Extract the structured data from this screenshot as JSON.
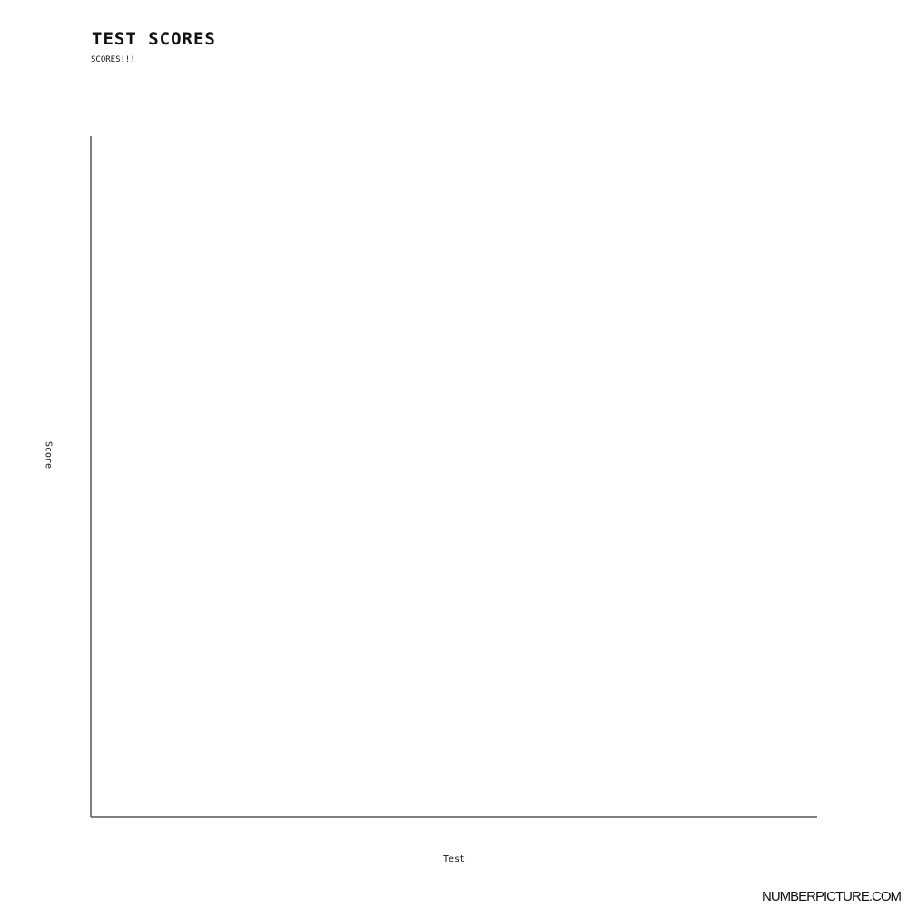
{
  "chart_data": {
    "type": "bar",
    "title": "TEST SCORES",
    "subtitle": "SCORES!!!",
    "xlabel": "Test",
    "ylabel": "Score",
    "categories": [],
    "values": [],
    "grid": false,
    "legend": "none",
    "colors": {
      "axis": "#555555",
      "text": "#111111",
      "background": "#ffffff"
    }
  },
  "watermark": "NUMBERPICTURE.COM"
}
